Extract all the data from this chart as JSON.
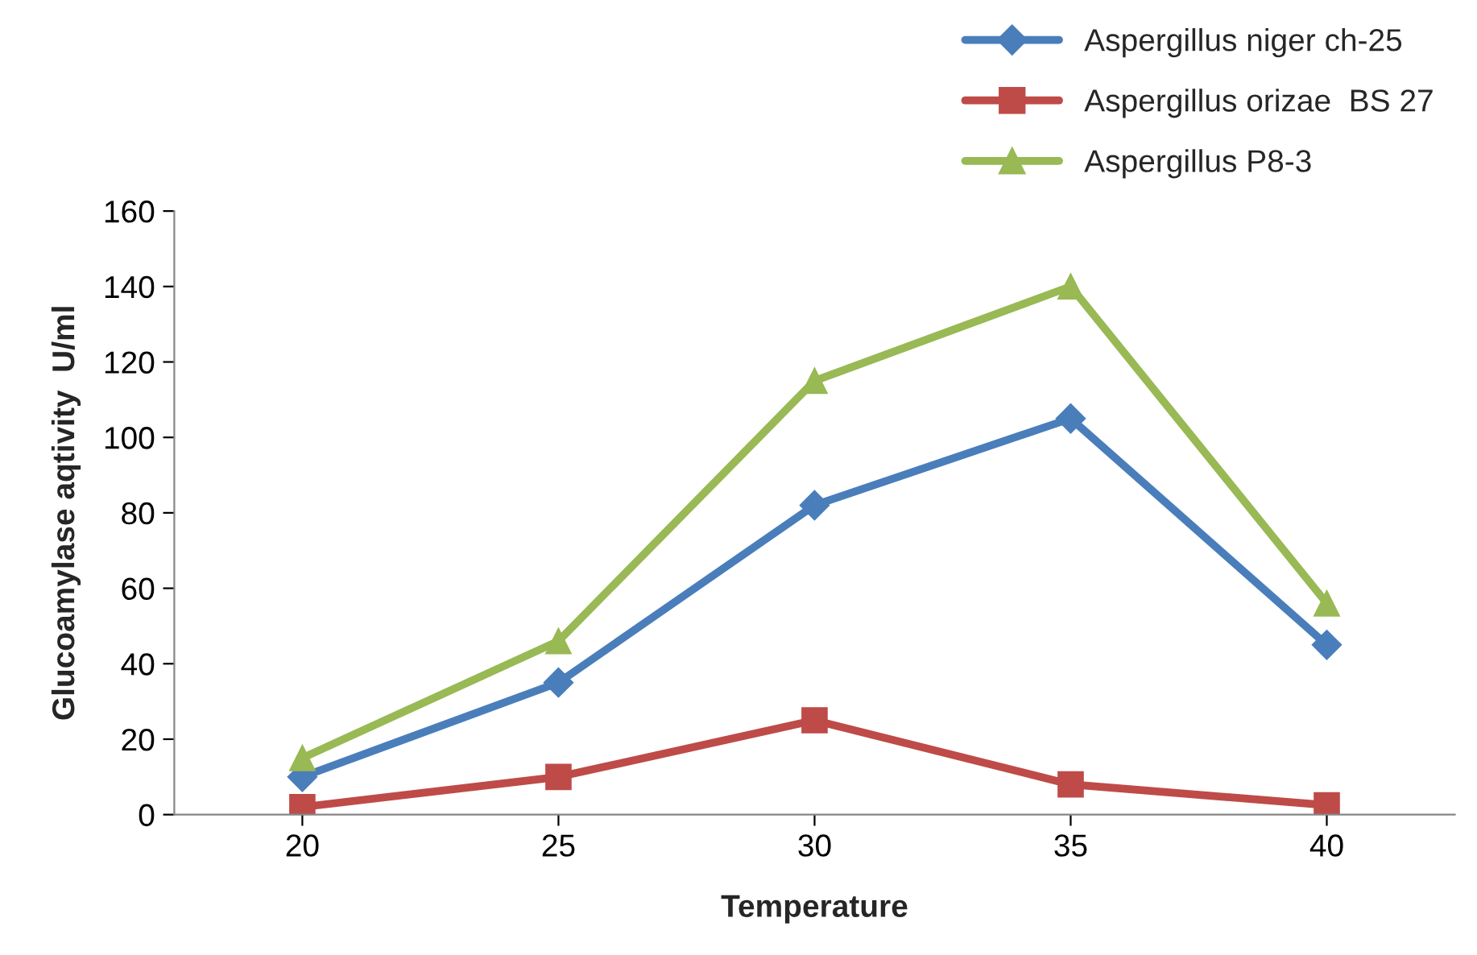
{
  "chart_data": {
    "type": "line",
    "xlabel": "Temperature",
    "ylabel": "Glucoamylase aqtivity  U/ml",
    "categories": [
      "20",
      "25",
      "30",
      "35",
      "40"
    ],
    "series": [
      {
        "name": "Aspergillus niger ch-25",
        "color": "#4a7ebb",
        "marker": "diamond",
        "values": [
          10,
          35,
          82,
          105,
          45
        ]
      },
      {
        "name": "Aspergillus orizae  BS 27",
        "color": "#be4b48",
        "marker": "square",
        "values": [
          2,
          10,
          25,
          8,
          2.5
        ]
      },
      {
        "name": "Aspergillus P8-3",
        "color": "#98b954",
        "marker": "triangle",
        "values": [
          15,
          46,
          115,
          140,
          56
        ]
      }
    ],
    "ylim": [
      0,
      160
    ],
    "yticks": [
      0,
      20,
      40,
      60,
      80,
      100,
      120,
      140,
      160
    ],
    "grid": false,
    "legend": "top right",
    "line_style": "solid"
  }
}
